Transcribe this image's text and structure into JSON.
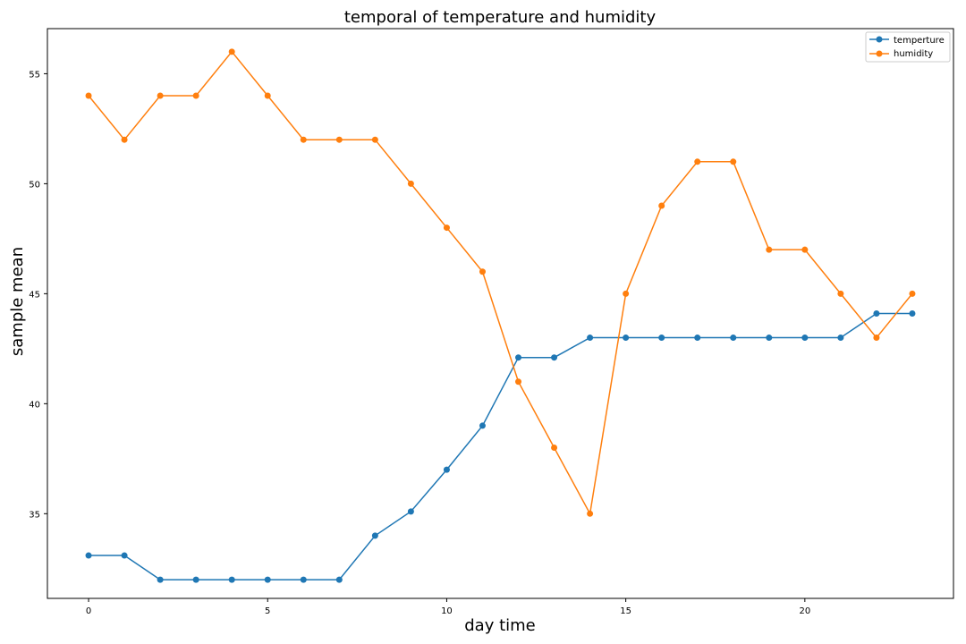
{
  "chart_data": {
    "type": "line",
    "title": "temporal of temperature and humidity",
    "xlabel": "day time",
    "ylabel": "sample mean",
    "xlim": [
      -1.15,
      24.15
    ],
    "ylim": [
      31.15,
      57.05
    ],
    "x_ticks": [
      0,
      5,
      10,
      15,
      20
    ],
    "y_ticks": [
      35,
      40,
      45,
      50,
      55
    ],
    "x_tick_labels": [
      "0",
      "5",
      "10",
      "15",
      "20"
    ],
    "y_tick_labels": [
      "35",
      "40",
      "45",
      "50",
      "55"
    ],
    "grid": false,
    "legend_position": "upper right",
    "x": [
      0,
      1,
      2,
      3,
      4,
      5,
      6,
      7,
      8,
      9,
      10,
      11,
      12,
      13,
      14,
      15,
      16,
      17,
      18,
      19,
      20,
      21,
      22,
      23
    ],
    "series": [
      {
        "name": "temperture",
        "color": "#1f77b4",
        "marker": "circle",
        "values": [
          33.1,
          33.1,
          32,
          32,
          32,
          32,
          32,
          32,
          34,
          35.1,
          37,
          39,
          42.1,
          42.1,
          43,
          43,
          43,
          43,
          43,
          43,
          43,
          43,
          44.1,
          44.1
        ]
      },
      {
        "name": "humidity",
        "color": "#ff7f0e",
        "marker": "circle",
        "values": [
          54,
          52,
          54,
          54,
          56,
          54,
          52,
          52,
          52,
          50,
          48,
          46,
          41,
          38,
          35,
          45,
          49,
          51,
          51,
          47,
          47,
          45,
          43,
          45
        ]
      }
    ]
  }
}
